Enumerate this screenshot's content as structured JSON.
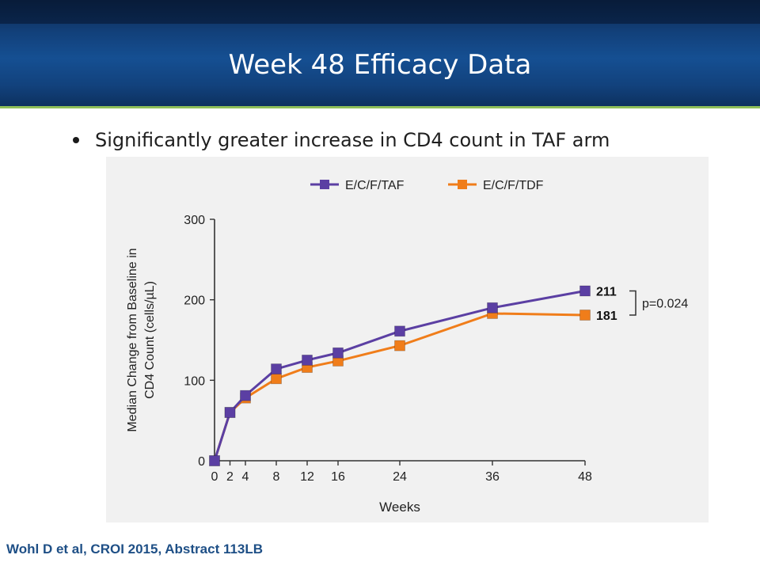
{
  "slide": {
    "title": "Week 48 Efficacy Data",
    "bullet": "Significantly greater increase in CD4 count in TAF arm",
    "footer": "Wohl D et al, CROI 2015, Abstract 113LB"
  },
  "colors": {
    "header": "#154f92",
    "accent_line": "#8fbf5a",
    "footer_text": "#1e4f86",
    "taf": "#5b3fa3",
    "tdf": "#f07d1a"
  },
  "chart_data": {
    "type": "line",
    "xlabel": "Weeks",
    "ylabel": [
      "Median Change from Baseline in",
      "CD4 Count (cells/µL)"
    ],
    "x": [
      0,
      2,
      4,
      8,
      12,
      16,
      24,
      36,
      48
    ],
    "xticks": [
      "0",
      "2",
      "4",
      "8",
      "12",
      "16",
      "24",
      "36",
      "48"
    ],
    "yticks": [
      "0",
      "100",
      "200",
      "300"
    ],
    "ylim": [
      0,
      300
    ],
    "xlim": [
      0,
      48
    ],
    "legend_position": "top",
    "series": [
      {
        "name": "E/C/F/TAF",
        "color": "#5b3fa3",
        "values": [
          0,
          60,
          81,
          114,
          125,
          134,
          161,
          190,
          211
        ],
        "end_label": "211"
      },
      {
        "name": "E/C/F/TDF",
        "color": "#f07d1a",
        "values": [
          0,
          60,
          78,
          102,
          116,
          124,
          143,
          183,
          181
        ],
        "end_label": "181"
      }
    ],
    "annotation": "p=0.024",
    "grid": false
  }
}
